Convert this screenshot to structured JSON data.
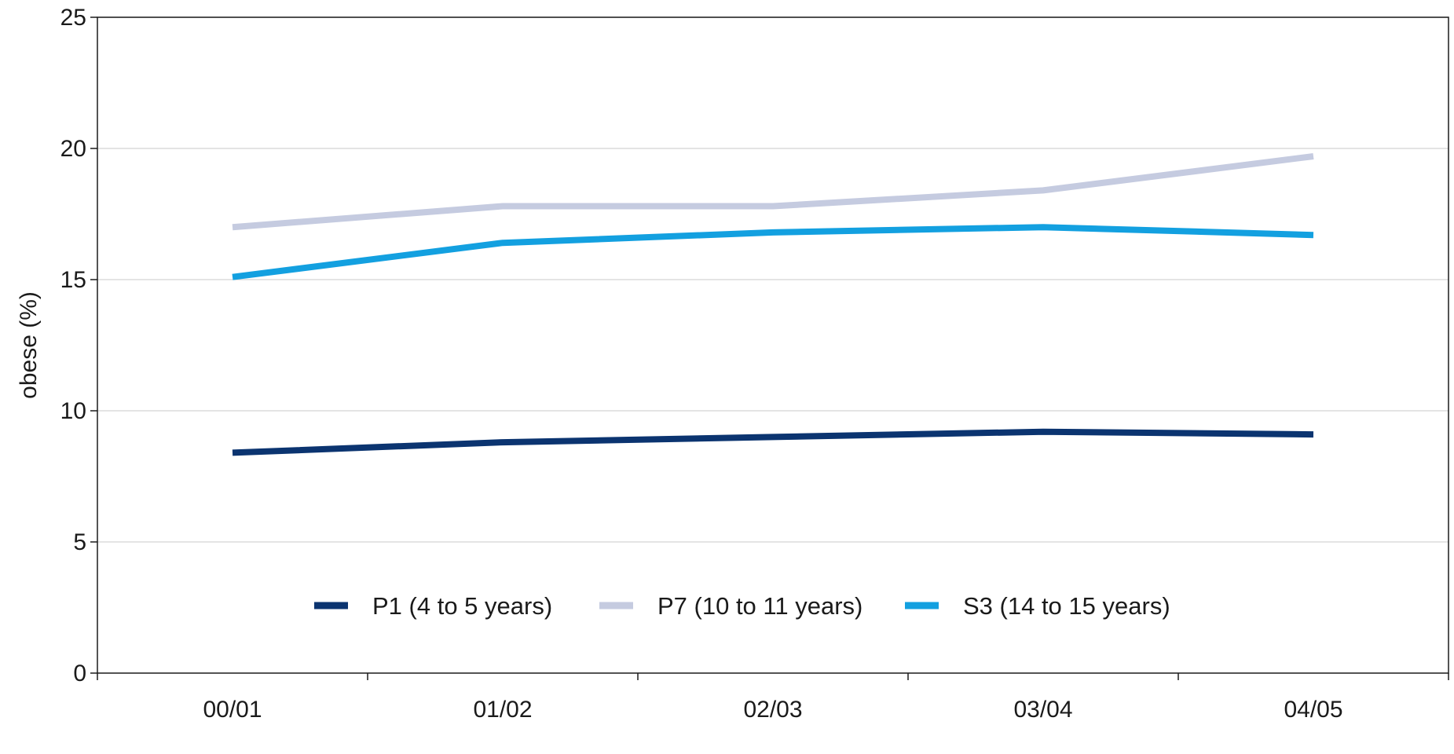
{
  "chart_data": {
    "type": "line",
    "title": "",
    "xlabel": "",
    "ylabel": "obese (%)",
    "categories": [
      "00/01",
      "01/02",
      "02/03",
      "03/04",
      "04/05"
    ],
    "ylim": [
      0,
      25
    ],
    "yticks": [
      "0",
      "5",
      "10",
      "15",
      "20",
      "25"
    ],
    "grid": true,
    "legend_position": "bottom-center inside plot",
    "series": [
      {
        "name": "P1 (4 to 5 years)",
        "color": "#0b3470",
        "values": [
          8.4,
          8.8,
          9.0,
          9.2,
          9.1
        ]
      },
      {
        "name": "P7 (10 to 11 years)",
        "color": "#c5cbe0",
        "values": [
          17.0,
          17.8,
          17.8,
          18.4,
          19.7
        ]
      },
      {
        "name": "S3 (14 to 15 years)",
        "color": "#13a0e0",
        "values": [
          15.1,
          16.4,
          16.8,
          17.0,
          16.7
        ]
      }
    ]
  }
}
